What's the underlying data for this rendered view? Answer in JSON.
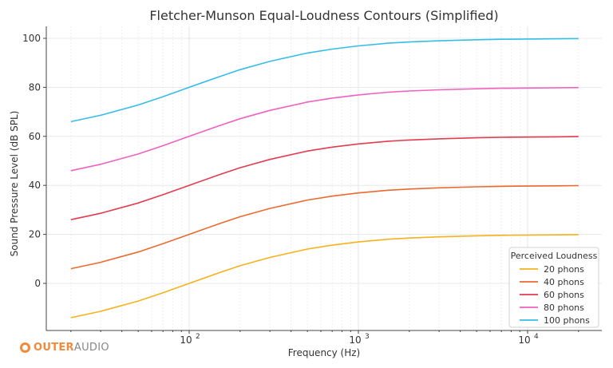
{
  "chart_data": {
    "type": "line",
    "title": "Fletcher-Munson Equal-Loudness Contours (Simplified)",
    "xlabel": "Frequency (Hz)",
    "ylabel": "Sound Pressure Level (dB SPL)",
    "xscale": "log",
    "xlim": [
      14,
      30000
    ],
    "ylim": [
      -20,
      104
    ],
    "xticks": [
      {
        "value": 100,
        "label": "10",
        "exp": "2"
      },
      {
        "value": 1000,
        "label": "10",
        "exp": "3"
      },
      {
        "value": 10000,
        "label": "10",
        "exp": "4"
      }
    ],
    "yticks": [
      0,
      20,
      40,
      60,
      80,
      100
    ],
    "grid": true,
    "legend": {
      "title": "Perceived Loudness",
      "position": "lower right"
    },
    "x": [
      20,
      30,
      50,
      70,
      100,
      150,
      200,
      300,
      500,
      700,
      1000,
      1500,
      2000,
      3000,
      5000,
      7000,
      10000,
      15000,
      20000
    ],
    "series": [
      {
        "name": "20 phons",
        "color": "#f5b21b",
        "values": [
          -14.0,
          -11.4,
          -7.2,
          -3.8,
          0.0,
          4.3,
          7.2,
          10.6,
          14.0,
          15.6,
          16.9,
          18.0,
          18.5,
          19.0,
          19.4,
          19.6,
          19.7,
          19.8,
          19.9
        ]
      },
      {
        "name": "40 phons",
        "color": "#ec6a2e",
        "values": [
          6.0,
          8.6,
          12.8,
          16.2,
          20.0,
          24.3,
          27.2,
          30.6,
          34.0,
          35.6,
          36.9,
          38.0,
          38.5,
          39.0,
          39.4,
          39.6,
          39.7,
          39.8,
          39.9
        ]
      },
      {
        "name": "60 phons",
        "color": "#e33b4f",
        "values": [
          26.0,
          28.6,
          32.8,
          36.2,
          40.0,
          44.3,
          47.2,
          50.6,
          54.0,
          55.6,
          56.9,
          58.0,
          58.5,
          59.0,
          59.4,
          59.6,
          59.7,
          59.8,
          59.9
        ]
      },
      {
        "name": "80 phons",
        "color": "#f062c0",
        "values": [
          46.0,
          48.6,
          52.8,
          56.2,
          60.0,
          64.3,
          67.2,
          70.6,
          74.0,
          75.6,
          76.9,
          78.0,
          78.5,
          79.0,
          79.4,
          79.6,
          79.7,
          79.8,
          79.9
        ]
      },
      {
        "name": "100 phons",
        "color": "#35bde8",
        "values": [
          66.0,
          68.6,
          72.8,
          76.2,
          80.0,
          84.3,
          87.2,
          90.6,
          94.0,
          95.6,
          96.9,
          98.0,
          98.5,
          99.0,
          99.4,
          99.6,
          99.7,
          99.8,
          99.9
        ]
      }
    ]
  },
  "branding": {
    "logo_bold": "OUTER",
    "logo_regular": "AUDIO",
    "accent": "#f08a3c"
  }
}
